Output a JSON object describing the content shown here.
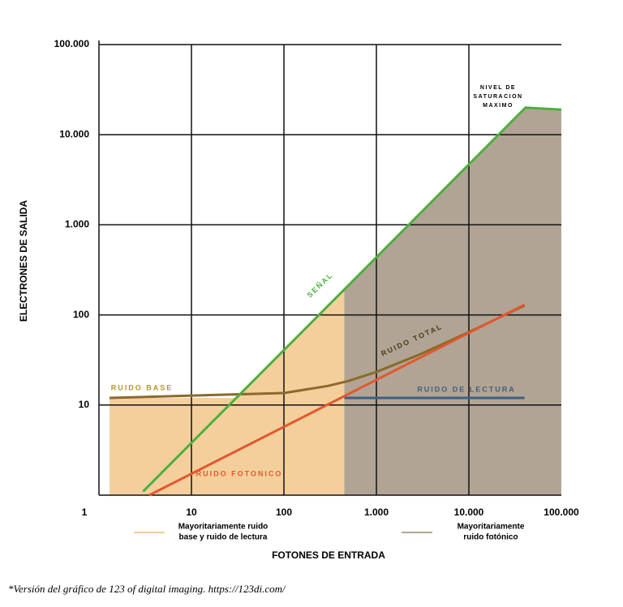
{
  "chart_data": {
    "type": "line",
    "ylabel": "ELECTRONES DE SALIDA",
    "xlabel": "FOTONES DE ENTRADA",
    "log_x": true,
    "log_y": true,
    "grid": true,
    "xlim": [
      1,
      100000
    ],
    "ylim": [
      1,
      100000
    ],
    "xticks": [
      1,
      10,
      100,
      {
        "value": 1000,
        "label": "1.000"
      },
      {
        "value": 10000,
        "label": "10.000"
      },
      {
        "value": 100000,
        "label": "100.000"
      }
    ],
    "yticks": [
      10,
      100,
      {
        "value": 1000,
        "label": "1.000"
      },
      {
        "value": 10000,
        "label": "10.000"
      },
      {
        "value": 100000,
        "label": "100.000"
      }
    ],
    "series": [
      {
        "name": "SEÑAL",
        "color": "#4caf3e",
        "x": [
          3,
          41000,
          100000
        ],
        "values": [
          1.1,
          20000,
          19000
        ]
      },
      {
        "name": "RUIDO TOTAL",
        "color": "#8a6a2a",
        "x": [
          1.3,
          100,
          300,
          500,
          1000,
          3000,
          10000,
          40000
        ],
        "values": [
          12,
          13.6,
          16.3,
          18.5,
          23.3,
          36.7,
          64.4,
          127
        ]
      },
      {
        "name": "RUIDO DE LECTURA",
        "color": "#3f5f80",
        "x": [
          450,
          40000
        ],
        "values": [
          12,
          12
        ]
      },
      {
        "name": "RUIDO FOTONICO",
        "color": "#e4572e",
        "x": [
          3.5,
          40000
        ],
        "values": [
          1,
          130
        ]
      }
    ],
    "annotations": [
      "RUIDO BASE"
    ],
    "saturation_label": [
      "NIVEL DE",
      "SATURACION",
      "MAXIMO"
    ],
    "regions": [
      {
        "label": [
          "Mayoritariamente ruido",
          "base y ruido de lectura"
        ],
        "color": "#f4cf9c",
        "x": [
          1.3,
          450
        ]
      },
      {
        "label": [
          "Mayoritariamente",
          "ruido fotónico"
        ],
        "color": "#b2a494",
        "x": [
          450,
          100000
        ]
      }
    ]
  },
  "footnote": "*Versión del gráfico de 123 of digital imaging. https://123di.com/"
}
